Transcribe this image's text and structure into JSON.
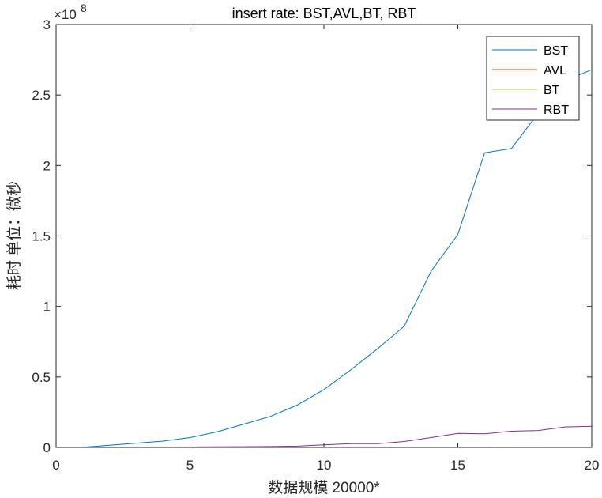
{
  "chart_data": {
    "type": "line",
    "title": "insert rate: BST,AVL,BT, RBT",
    "xlabel": "数据规模 20000*",
    "ylabel": "耗时 单位：微秒",
    "y_exponent_label": "×10",
    "y_exponent_power": "8",
    "y_scale": 100000000,
    "xlim": [
      0,
      20
    ],
    "ylim": [
      0,
      300000000
    ],
    "xticks": [
      0,
      5,
      10,
      15,
      20
    ],
    "yticks": [
      0,
      0.5,
      1,
      1.5,
      2,
      2.5,
      3
    ],
    "ytick_labels": [
      "0",
      "0.5",
      "1",
      "1.5",
      "2",
      "2.5",
      "3"
    ],
    "grid": false,
    "legend_position": "top-right",
    "x": [
      1,
      2,
      3,
      4,
      5,
      6,
      7,
      8,
      9,
      10,
      11,
      12,
      13,
      14,
      15,
      16,
      17,
      18,
      19,
      20
    ],
    "series": [
      {
        "name": "BST",
        "color": "#0072BD",
        "values": [
          100000,
          1500000,
          3000000,
          4500000,
          7000000,
          11000000,
          16500000,
          22000000,
          30000000,
          41000000,
          55000000,
          70000000,
          86000000,
          125000000,
          151000000,
          209000000,
          212000000,
          237000000,
          260000000,
          268000000
        ]
      },
      {
        "name": "AVL",
        "color": "#D95319",
        "values": [
          1000,
          2000,
          3000,
          5000,
          6000,
          8000,
          10000,
          12000,
          14000,
          16000,
          18000,
          20000,
          22000,
          24000,
          26000,
          28000,
          30000,
          32000,
          34000,
          36000
        ]
      },
      {
        "name": "BT",
        "color": "#EDB120",
        "values": [
          1000,
          2000,
          3000,
          4000,
          5000,
          6000,
          8000,
          9000,
          10000,
          12000,
          13000,
          14000,
          16000,
          17000,
          18000,
          20000,
          21000,
          22000,
          24000,
          25000
        ]
      },
      {
        "name": "RBT",
        "color": "#7E2F8E",
        "values": [
          10000,
          50000,
          100000,
          200000,
          300000,
          400000,
          500000,
          600000,
          900000,
          1800000,
          2700000,
          2700000,
          4200000,
          7000000,
          10000000,
          9700000,
          11500000,
          12000000,
          14500000,
          15000000
        ]
      }
    ]
  }
}
